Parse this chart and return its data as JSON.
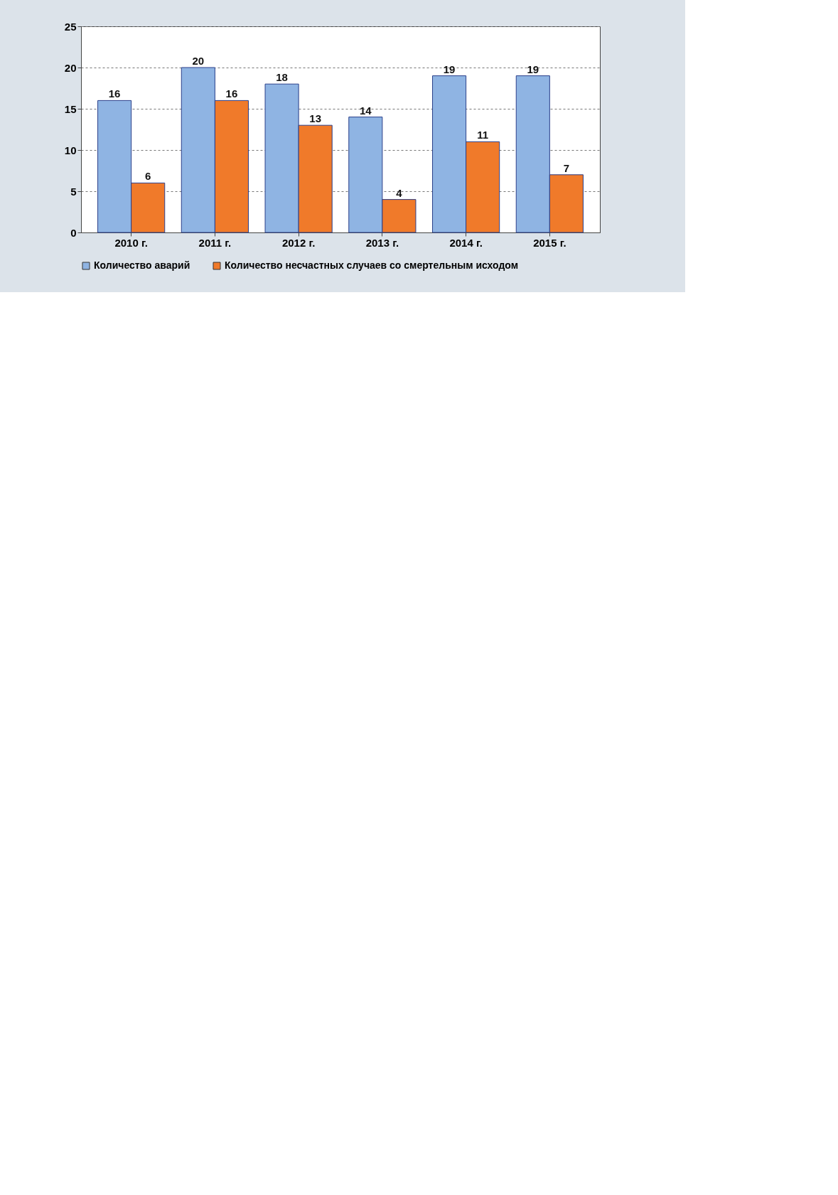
{
  "chart_data": {
    "type": "bar",
    "categories": [
      "2010 г.",
      "2011 г.",
      "2012 г.",
      "2013 г.",
      "2014 г.",
      "2015 г."
    ],
    "series": [
      {
        "name": "Количество аварий",
        "color": "#8fb4e3",
        "values": [
          16,
          20,
          18,
          14,
          19,
          19
        ]
      },
      {
        "name": "Количество несчастных случаев со смертельным исходом",
        "color": "#f07a2a",
        "values": [
          6,
          16,
          13,
          4,
          11,
          7
        ]
      }
    ],
    "ylim": [
      0,
      25
    ],
    "yticks": [
      0,
      5,
      10,
      15,
      20,
      25
    ],
    "grid": "y",
    "legend": "bottom",
    "data_labels": true
  }
}
